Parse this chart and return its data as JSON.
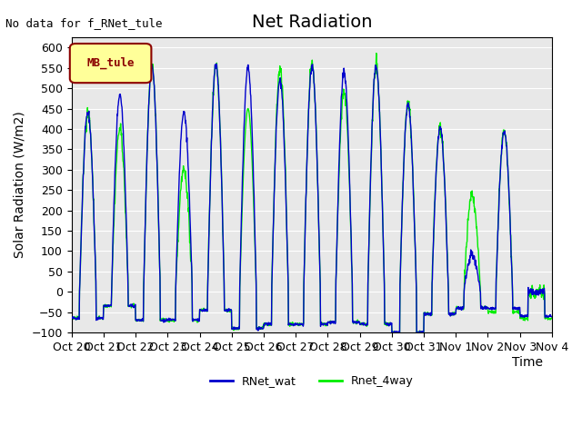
{
  "title": "Net Radiation",
  "annotation": "No data for f_RNet_tule",
  "legend_box_label": "MB_tule",
  "ylabel": "Solar Radiation (W/m2)",
  "xlabel": "Time",
  "ylim": [
    -100,
    625
  ],
  "yticks": [
    -100,
    -50,
    0,
    50,
    100,
    150,
    200,
    250,
    300,
    350,
    400,
    450,
    500,
    550,
    600
  ],
  "xtick_labels": [
    "Oct 20",
    "Oct 21",
    "Oct 22",
    "Oct 23",
    "Oct 24",
    "Oct 25",
    "Oct 26",
    "Oct 27",
    "Oct 28",
    "Oct 29",
    "Oct 30",
    "Oct 31",
    "Nov 1",
    "Nov 2",
    "Nov 3",
    "Nov 4"
  ],
  "line1_color": "#0000cc",
  "line1_label": "RNet_wat",
  "line2_color": "#00ee00",
  "line2_label": "Rnet_4way",
  "line_width": 1.0,
  "bg_color": "#e8e8e8",
  "fig_bg_color": "#ffffff",
  "title_fontsize": 14,
  "axis_fontsize": 10,
  "tick_fontsize": 9,
  "legend_box_color": "#ffff99",
  "legend_box_edgecolor": "#8B0000",
  "legend_box_textcolor": "#8B0000",
  "num_days": 15,
  "pts_per_day": 96
}
